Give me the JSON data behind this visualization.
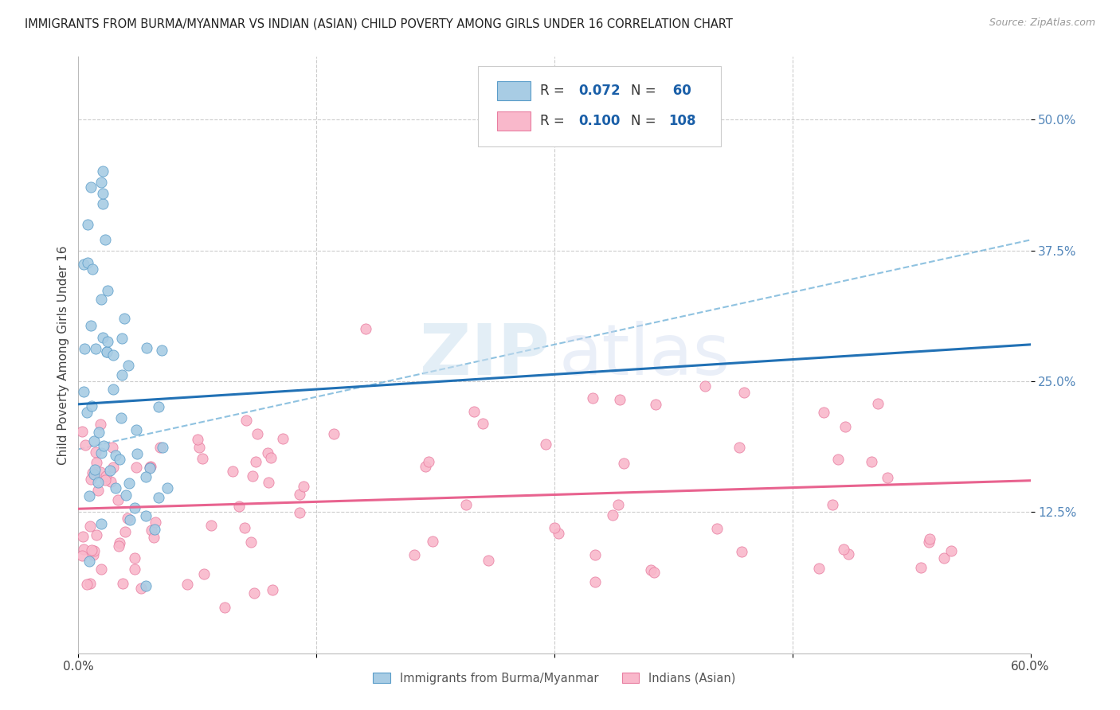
{
  "title": "IMMIGRANTS FROM BURMA/MYANMAR VS INDIAN (ASIAN) CHILD POVERTY AMONG GIRLS UNDER 16 CORRELATION CHART",
  "source": "Source: ZipAtlas.com",
  "ylabel": "Child Poverty Among Girls Under 16",
  "xlim": [
    0.0,
    0.6
  ],
  "ylim": [
    -0.01,
    0.56
  ],
  "ytick_values": [
    0.125,
    0.25,
    0.375,
    0.5
  ],
  "ytick_labels": [
    "12.5%",
    "25.0%",
    "37.5%",
    "50.0%"
  ],
  "xtick_values": [
    0.0,
    0.6
  ],
  "xtick_labels": [
    "0.0%",
    "60.0%"
  ],
  "color_blue": "#a8cce4",
  "color_pink": "#f9b8cb",
  "edge_blue": "#5b9dc9",
  "edge_pink": "#e87ea1",
  "line_blue_solid": "#2171b5",
  "line_pink_solid": "#e8638f",
  "line_blue_dash": "#6aaed6",
  "grid_color": "#cccccc",
  "legend_r1": "0.072",
  "legend_n1": "60",
  "legend_r2": "0.100",
  "legend_n2": "108",
  "blue_label": "Immigrants from Burma/Myanmar",
  "pink_label": "Indians (Asian)",
  "blue_trend_y0": 0.228,
  "blue_trend_y1": 0.285,
  "pink_trend_y0": 0.128,
  "pink_trend_y1": 0.155,
  "dash_trend_y0": 0.185,
  "dash_trend_y1": 0.385
}
